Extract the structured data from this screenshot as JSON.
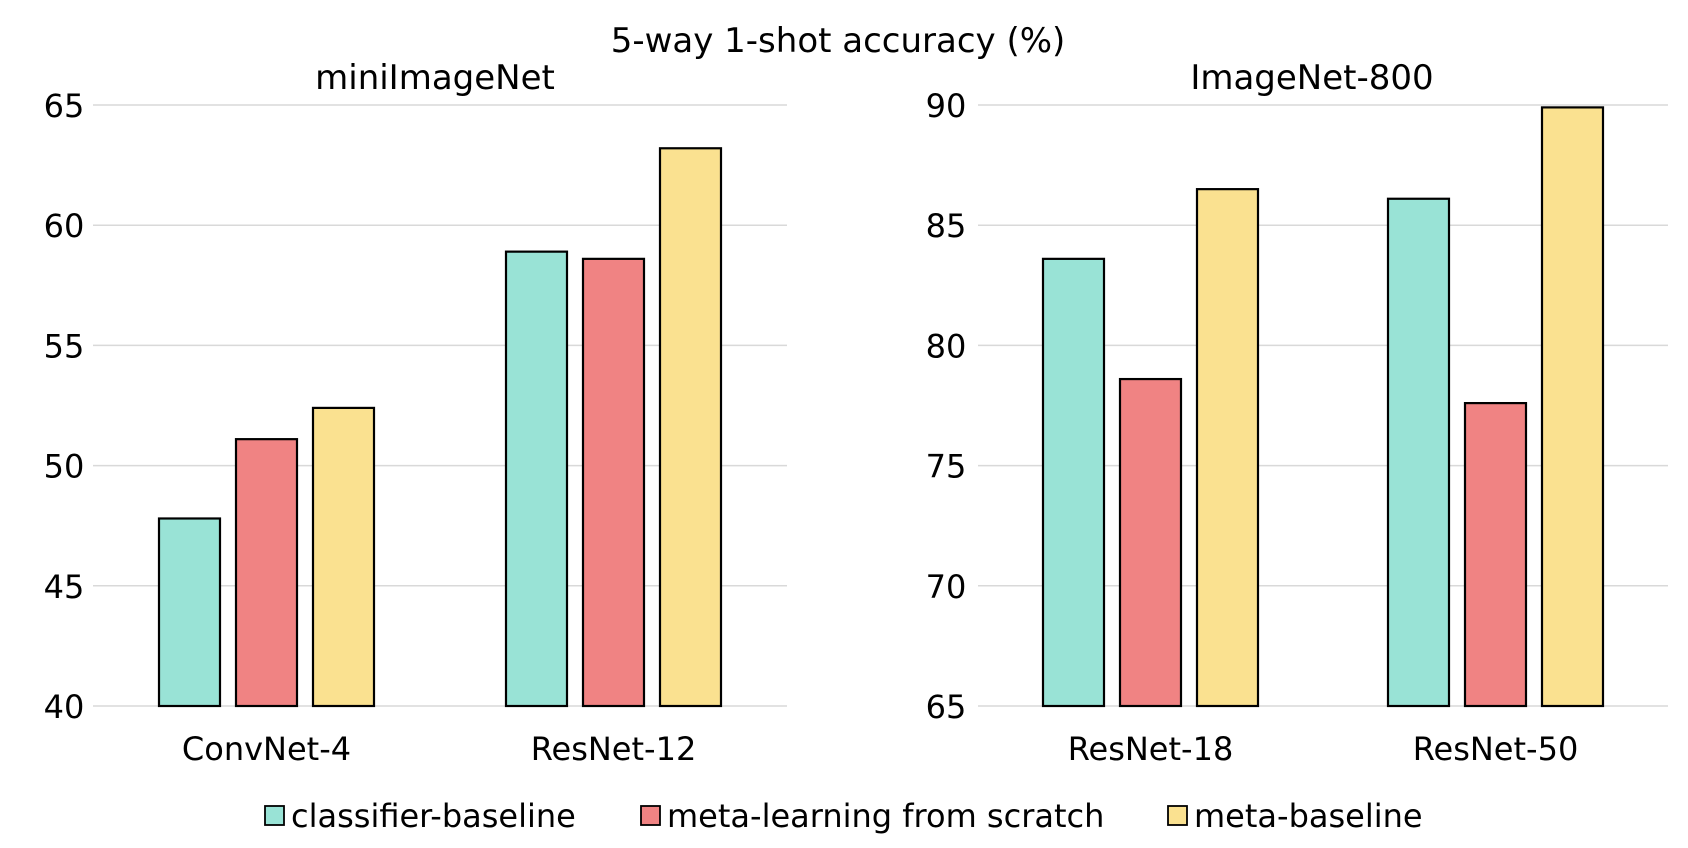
{
  "figure": {
    "title": "5-way 1-shot accuracy (%)"
  },
  "colors": {
    "grid": "#d9d9d9",
    "bar_edge": "#000000"
  },
  "legend": {
    "items": [
      {
        "label": "classifier-baseline",
        "color": "#99e3d6"
      },
      {
        "label": "meta-learning from scratch",
        "color": "#f08383"
      },
      {
        "label": "meta-baseline",
        "color": "#fae190"
      }
    ]
  },
  "chart_data": [
    {
      "type": "bar",
      "title": "miniImageNet",
      "categories": [
        "ConvNet-4",
        "ResNet-12"
      ],
      "series": [
        {
          "name": "classifier-baseline",
          "values": [
            47.8,
            58.9
          ]
        },
        {
          "name": "meta-learning from scratch",
          "values": [
            51.1,
            58.6
          ]
        },
        {
          "name": "meta-baseline",
          "values": [
            52.4,
            63.2
          ]
        }
      ],
      "ylim": [
        40,
        65
      ],
      "yticks": [
        40,
        45,
        50,
        55,
        60,
        65
      ],
      "grid": true
    },
    {
      "type": "bar",
      "title": "ImageNet-800",
      "categories": [
        "ResNet-18",
        "ResNet-50"
      ],
      "series": [
        {
          "name": "classifier-baseline",
          "values": [
            83.6,
            86.1
          ]
        },
        {
          "name": "meta-learning from scratch",
          "values": [
            78.6,
            77.6
          ]
        },
        {
          "name": "meta-baseline",
          "values": [
            86.5,
            89.9
          ]
        }
      ],
      "ylim": [
        65,
        90
      ],
      "yticks": [
        65,
        70,
        75,
        80,
        85,
        90
      ],
      "grid": true
    }
  ]
}
